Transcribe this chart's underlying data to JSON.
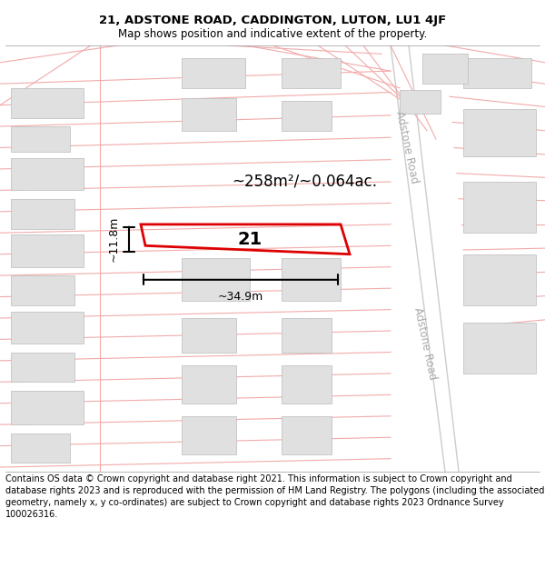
{
  "title": "21, ADSTONE ROAD, CADDINGTON, LUTON, LU1 4JF",
  "subtitle": "Map shows position and indicative extent of the property.",
  "footer": "Contains OS data © Crown copyright and database right 2021. This information is subject to Crown copyright and database rights 2023 and is reproduced with the permission of HM Land Registry. The polygons (including the associated geometry, namely x, y co-ordinates) are subject to Crown copyright and database rights 2023 Ordnance Survey 100026316.",
  "bg_color": "#ffffff",
  "map_bg": "#ffffff",
  "title_fontsize": 9.5,
  "subtitle_fontsize": 8.5,
  "footer_fontsize": 7.0,
  "area_text": "~258m²/~0.064ac.",
  "width_text": "~34.9m",
  "height_text": "~11.8m",
  "property_number": "21",
  "highlight_color": "#dd0000",
  "road_color": "#f2aaaa",
  "road_color2": "#cccccc",
  "building_color": "#e0e0e0",
  "building_edge": "#bbbbbb",
  "road_label": "Adstone Road"
}
